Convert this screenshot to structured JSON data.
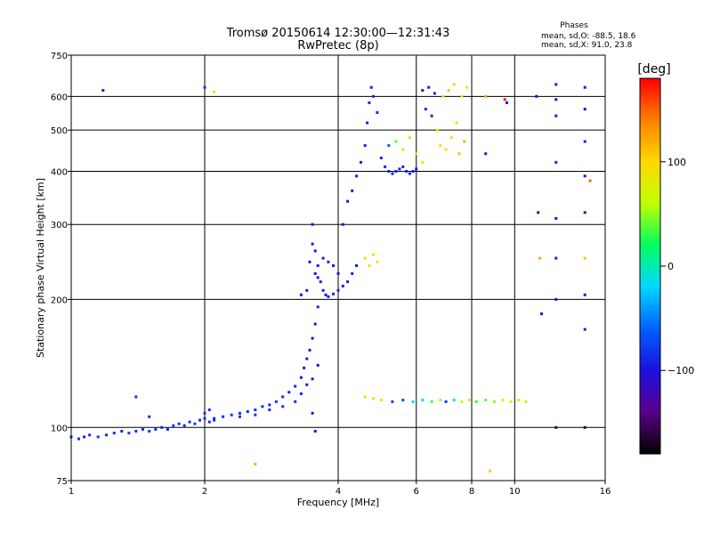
{
  "header": {
    "title_line1": "Tromsø 20150614 12:30:00—12:31:43",
    "title_line2": "RwPretec (8p)",
    "phase_heading": "Phases",
    "phase_o": "mean, sd,O: -88.5, 18.6",
    "phase_x": "mean, sd,X:  91.0, 23.8"
  },
  "colorbar": {
    "unit_label": "[deg]",
    "ticks": [
      {
        "value": 100,
        "label": "100"
      },
      {
        "value": 0,
        "label": "0"
      },
      {
        "value": -100,
        "label": "−100"
      }
    ],
    "range": [
      -180,
      180
    ],
    "colormap": [
      "#000000",
      "#5a0088",
      "#1a10e0",
      "#0060ff",
      "#00d8ff",
      "#00ff60",
      "#c0ff00",
      "#ffd800",
      "#ff8000",
      "#ff0000"
    ]
  },
  "chart_data": {
    "type": "scatter",
    "title": "Tromsø 20150614 12:30:00—12:31:43",
    "subtitle": "RwPretec (8p)",
    "xlabel": "Frequency [MHz]",
    "ylabel": "Stationary phase Virtual Height [km]",
    "x_scale": "log",
    "y_scale": "log",
    "xlim": [
      1,
      16
    ],
    "ylim": [
      75,
      750
    ],
    "x_ticks": [
      {
        "value": 1,
        "label": "1"
      },
      {
        "value": 2,
        "label": "2"
      },
      {
        "value": 4,
        "label": "4"
      },
      {
        "value": 6,
        "label": "6"
      },
      {
        "value": 8,
        "label": "8"
      },
      {
        "value": 10,
        "label": "10"
      },
      {
        "value": 16,
        "label": "16"
      }
    ],
    "y_ticks": [
      {
        "value": 75,
        "label": "75"
      },
      {
        "value": 100,
        "label": "100"
      },
      {
        "value": 200,
        "label": "200"
      },
      {
        "value": 300,
        "label": "300"
      },
      {
        "value": 400,
        "label": "400"
      },
      {
        "value": 500,
        "label": "500"
      },
      {
        "value": 600,
        "label": "600"
      },
      {
        "value": 750,
        "label": "750"
      }
    ],
    "grid": true,
    "color_axis": "phase [deg]",
    "series": [
      {
        "points": [
          [
            1.0,
            95,
            -85
          ],
          [
            1.04,
            94,
            -80
          ],
          [
            1.07,
            95,
            -90
          ],
          [
            1.1,
            96,
            -82
          ],
          [
            1.15,
            95,
            -75
          ],
          [
            1.2,
            96,
            -88
          ],
          [
            1.25,
            97,
            -84
          ],
          [
            1.3,
            98,
            -92
          ],
          [
            1.35,
            97,
            -80
          ],
          [
            1.4,
            98,
            -86
          ],
          [
            1.45,
            99,
            -90
          ],
          [
            1.5,
            98,
            -78
          ],
          [
            1.55,
            99,
            -84
          ],
          [
            1.6,
            100,
            -88
          ],
          [
            1.65,
            99,
            -92
          ],
          [
            1.7,
            101,
            -80
          ],
          [
            1.75,
            102,
            -86
          ],
          [
            1.8,
            101,
            -90
          ],
          [
            1.85,
            103,
            -84
          ],
          [
            1.9,
            102,
            -80
          ],
          [
            1.95,
            104,
            -88
          ],
          [
            2.0,
            105,
            -82
          ],
          [
            2.05,
            103,
            -90
          ],
          [
            2.1,
            105,
            -86
          ],
          [
            2.2,
            106,
            -84
          ],
          [
            2.3,
            107,
            -80
          ],
          [
            2.4,
            108,
            -86
          ],
          [
            2.5,
            109,
            -90
          ],
          [
            2.6,
            110,
            -84
          ],
          [
            2.7,
            112,
            -82
          ],
          [
            2.8,
            113,
            -86
          ],
          [
            2.9,
            115,
            -80
          ],
          [
            3.0,
            118,
            -88
          ],
          [
            3.1,
            121,
            -92
          ],
          [
            3.2,
            125,
            -90
          ],
          [
            3.3,
            131,
            -96
          ],
          [
            3.35,
            138,
            -94
          ],
          [
            3.4,
            145,
            -98
          ],
          [
            3.45,
            152,
            -92
          ],
          [
            3.5,
            162,
            -100
          ],
          [
            3.55,
            175,
            -95
          ],
          [
            3.6,
            192,
            -90
          ],
          [
            2.0,
            108,
            -78
          ],
          [
            2.05,
            110,
            -82
          ],
          [
            2.1,
            104,
            -86
          ],
          [
            2.4,
            106,
            -84
          ],
          [
            2.6,
            107,
            -82
          ],
          [
            2.8,
            110,
            -86
          ],
          [
            3.0,
            112,
            -84
          ],
          [
            3.2,
            115,
            -88
          ],
          [
            3.3,
            120,
            -92
          ],
          [
            3.4,
            126,
            -96
          ],
          [
            3.5,
            108,
            -110
          ],
          [
            3.55,
            98,
            -104
          ],
          [
            3.5,
            130,
            -110
          ],
          [
            3.6,
            140,
            -100
          ],
          [
            3.45,
            245,
            -100
          ],
          [
            3.5,
            270,
            -95
          ],
          [
            3.5,
            300,
            -98
          ],
          [
            3.55,
            260,
            -102
          ],
          [
            3.6,
            240,
            -95
          ],
          [
            3.65,
            220,
            -92
          ],
          [
            3.7,
            210,
            -96
          ],
          [
            3.75,
            205,
            -98
          ],
          [
            3.8,
            203,
            -95
          ],
          [
            3.9,
            206,
            -92
          ],
          [
            4.0,
            210,
            -90
          ],
          [
            4.1,
            215,
            -96
          ],
          [
            4.2,
            220,
            -94
          ],
          [
            4.3,
            230,
            -92
          ],
          [
            4.4,
            240,
            -95
          ],
          [
            3.55,
            230,
            -100
          ],
          [
            3.6,
            225,
            -96
          ],
          [
            3.7,
            250,
            -92
          ],
          [
            3.8,
            245,
            -90
          ],
          [
            3.9,
            240,
            -92
          ],
          [
            4.0,
            230,
            -94
          ],
          [
            4.1,
            300,
            -100
          ],
          [
            4.2,
            340,
            -96
          ],
          [
            4.3,
            360,
            -92
          ],
          [
            4.4,
            390,
            -96
          ],
          [
            4.5,
            420,
            -92
          ],
          [
            4.6,
            460,
            -90
          ],
          [
            4.65,
            520,
            -95
          ],
          [
            4.7,
            580,
            -90
          ],
          [
            4.75,
            630,
            -92
          ],
          [
            4.8,
            600,
            -88
          ],
          [
            4.9,
            550,
            -90
          ],
          [
            4.6,
            250,
            90
          ],
          [
            4.7,
            240,
            100
          ],
          [
            4.8,
            255,
            95
          ],
          [
            4.9,
            245,
            85
          ],
          [
            5.0,
            430,
            -90
          ],
          [
            5.1,
            410,
            -88
          ],
          [
            5.2,
            400,
            -92
          ],
          [
            5.3,
            395,
            -94
          ],
          [
            5.4,
            400,
            -90
          ],
          [
            5.5,
            405,
            -88
          ],
          [
            5.6,
            410,
            -90
          ],
          [
            5.7,
            400,
            -92
          ],
          [
            5.8,
            395,
            -90
          ],
          [
            5.9,
            400,
            -94
          ],
          [
            6.0,
            405,
            -92
          ],
          [
            5.2,
            460,
            -60
          ],
          [
            5.4,
            470,
            40
          ],
          [
            5.6,
            450,
            80
          ],
          [
            5.8,
            480,
            100
          ],
          [
            6.0,
            440,
            90
          ],
          [
            6.2,
            420,
            95
          ],
          [
            6.2,
            620,
            -90
          ],
          [
            6.4,
            630,
            -95
          ],
          [
            6.6,
            610,
            -92
          ],
          [
            6.3,
            560,
            -90
          ],
          [
            6.5,
            540,
            -88
          ],
          [
            6.7,
            500,
            80
          ],
          [
            6.8,
            460,
            90
          ],
          [
            7.0,
            450,
            95
          ],
          [
            7.2,
            480,
            100
          ],
          [
            7.4,
            520,
            90
          ],
          [
            7.6,
            600,
            95
          ],
          [
            7.8,
            630,
            85
          ],
          [
            7.5,
            440,
            110
          ],
          [
            7.7,
            470,
            120
          ],
          [
            6.9,
            600,
            100
          ],
          [
            7.1,
            620,
            110
          ],
          [
            7.3,
            640,
            105
          ],
          [
            4.6,
            118,
            100
          ],
          [
            4.8,
            117,
            95
          ],
          [
            5.0,
            116,
            90
          ],
          [
            5.3,
            115,
            -80
          ],
          [
            5.6,
            116,
            -70
          ],
          [
            5.9,
            115,
            -20
          ],
          [
            6.2,
            116,
            -10
          ],
          [
            6.5,
            115,
            30
          ],
          [
            6.8,
            116,
            50
          ],
          [
            7.0,
            115,
            -80
          ],
          [
            7.3,
            116,
            20
          ],
          [
            7.6,
            115,
            60
          ],
          [
            7.9,
            116,
            90
          ],
          [
            8.2,
            115,
            30
          ],
          [
            8.6,
            116,
            40
          ],
          [
            9.0,
            115,
            50
          ],
          [
            9.4,
            116,
            60
          ],
          [
            9.8,
            115,
            70
          ],
          [
            10.2,
            116,
            80
          ],
          [
            10.6,
            115,
            90
          ],
          [
            1.18,
            620,
            -90
          ],
          [
            2.0,
            630,
            -88
          ],
          [
            2.1,
            615,
            100
          ],
          [
            1.4,
            118,
            -80
          ],
          [
            1.5,
            106,
            -90
          ],
          [
            2.6,
            82,
            120
          ],
          [
            3.3,
            205,
            -98
          ],
          [
            3.4,
            210,
            -95
          ],
          [
            8.6,
            600,
            120
          ],
          [
            8.6,
            440,
            -95
          ],
          [
            8.8,
            79,
            110
          ],
          [
            9.5,
            590,
            170
          ],
          [
            9.6,
            580,
            -100
          ],
          [
            11.2,
            600,
            -100
          ],
          [
            11.3,
            320,
            -120
          ],
          [
            11.4,
            250,
            120
          ],
          [
            11.5,
            185,
            -110
          ],
          [
            12.4,
            640,
            -95
          ],
          [
            12.4,
            590,
            -100
          ],
          [
            12.4,
            540,
            -98
          ],
          [
            12.4,
            420,
            -90
          ],
          [
            12.4,
            310,
            -102
          ],
          [
            12.4,
            250,
            -98
          ],
          [
            12.4,
            200,
            -96
          ],
          [
            12.4,
            100,
            -160
          ],
          [
            14.4,
            630,
            -95
          ],
          [
            14.4,
            560,
            -100
          ],
          [
            14.4,
            470,
            -92
          ],
          [
            14.4,
            390,
            -96
          ],
          [
            14.4,
            320,
            -100
          ],
          [
            14.4,
            250,
            110
          ],
          [
            14.4,
            205,
            -98
          ],
          [
            14.4,
            170,
            -92
          ],
          [
            14.4,
            100,
            -160
          ],
          [
            14.8,
            380,
            150
          ]
        ]
      }
    ]
  }
}
